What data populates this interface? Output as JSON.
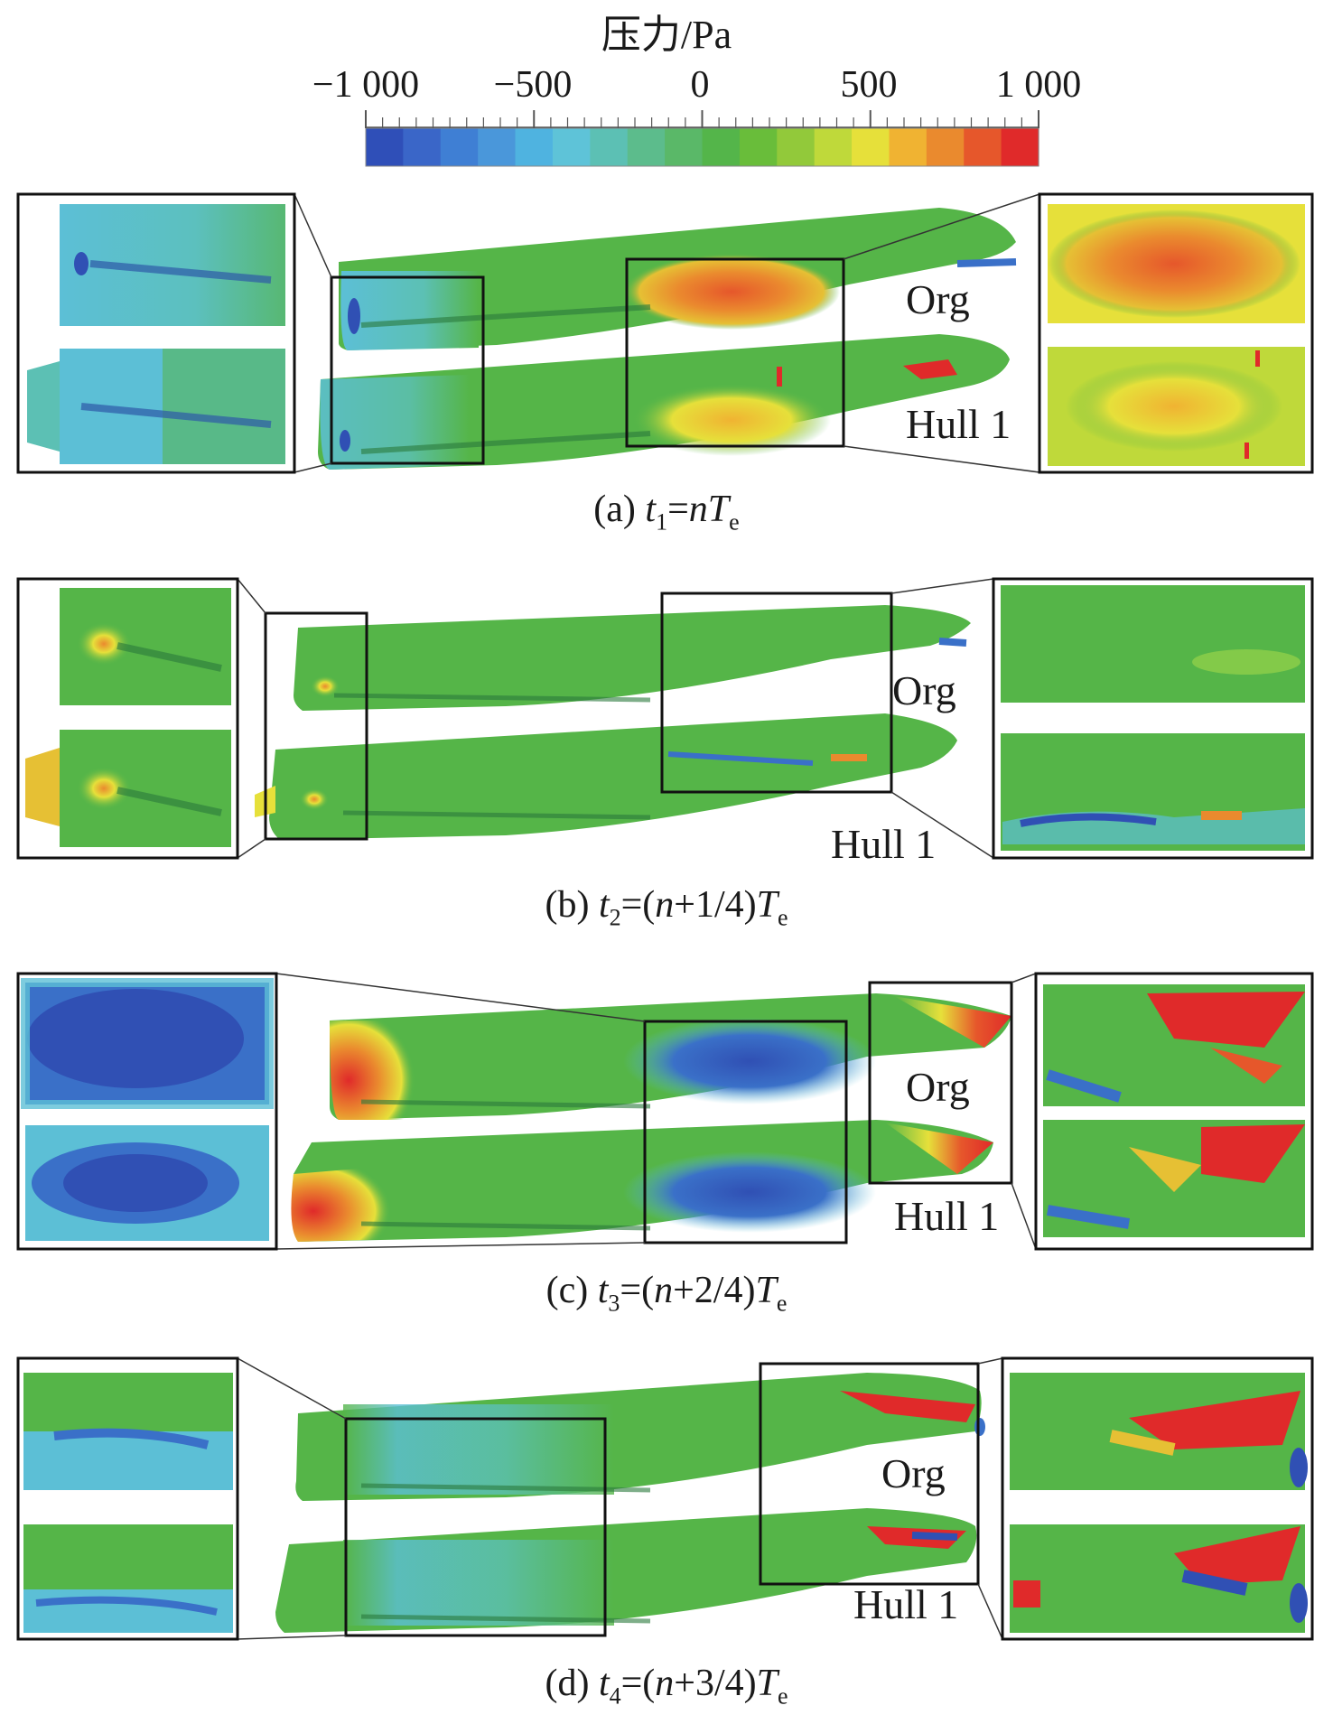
{
  "colorbar": {
    "title": "压力/Pa",
    "ticks": [
      "−1 000",
      "−500",
      "0",
      "500",
      "1 000"
    ],
    "tick_values": [
      -1000,
      -500,
      0,
      500,
      1000
    ],
    "colors": [
      "#2f4fb8",
      "#3a66c8",
      "#3f7fd4",
      "#4a97da",
      "#4fb3e0",
      "#5ec3d8",
      "#5cc0b4",
      "#5cbc8c",
      "#5ab868",
      "#54b54a",
      "#69bd3a",
      "#92c93a",
      "#bfd93a",
      "#e6e03a",
      "#f0b332",
      "#ea8a2e",
      "#e6572b",
      "#e02a2a"
    ]
  },
  "panels": [
    {
      "id": "a",
      "label_org": "Org",
      "label_hull": "Hull 1",
      "caption": {
        "prefix": "(a) ",
        "var": "t",
        "sub": "1",
        "mid": "=",
        "n": "n",
        "tail": "",
        "T": "T",
        "Tsub": "e"
      }
    },
    {
      "id": "b",
      "label_org": "Org",
      "label_hull": "Hull 1",
      "caption": {
        "prefix": "(b) ",
        "var": "t",
        "sub": "2",
        "mid": "=(",
        "n": "n",
        "tail": "+1/4)",
        "T": "T",
        "Tsub": "e"
      }
    },
    {
      "id": "c",
      "label_org": "Org",
      "label_hull": "Hull 1",
      "caption": {
        "prefix": "(c) ",
        "var": "t",
        "sub": "3",
        "mid": "=(",
        "n": "n",
        "tail": "+2/4)",
        "T": "T",
        "Tsub": "e"
      }
    },
    {
      "id": "d",
      "label_org": "Org",
      "label_hull": "Hull 1",
      "caption": {
        "prefix": "(d) ",
        "var": "t",
        "sub": "4",
        "mid": "=(",
        "n": "n",
        "tail": "+3/4)",
        "T": "T",
        "Tsub": "e"
      }
    }
  ],
  "palette": {
    "green": "#55b548",
    "light_blue": "#5cbfd6",
    "blue": "#3a70c8",
    "deep_blue": "#3050b4",
    "orange": "#ea8a2e",
    "yellow": "#d8dc3a",
    "red": "#e02a2a"
  }
}
